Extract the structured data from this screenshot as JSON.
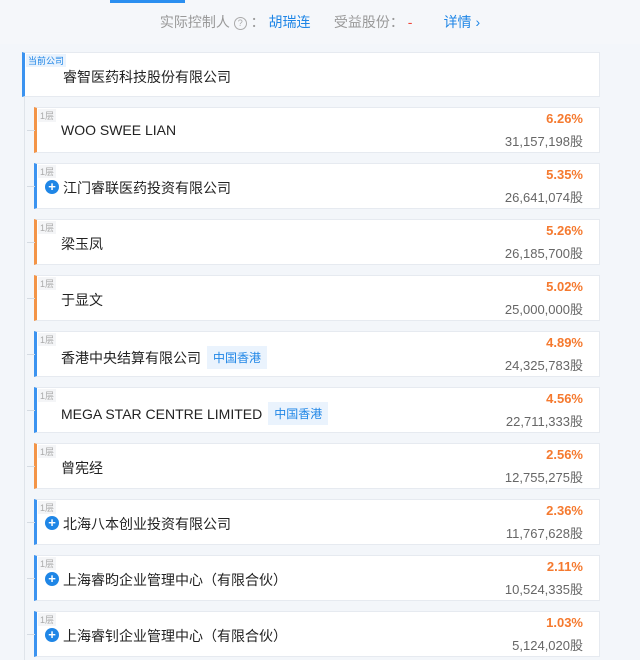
{
  "header": {
    "controller_label": "实际控制人",
    "controller_help_icon": "question-circle-icon",
    "controller_sep": "：",
    "controller_name": "胡瑞连",
    "benefit_label": "受益股份：",
    "benefit_value": "-",
    "details_link": "详情 ›"
  },
  "current": {
    "label": "当前公司",
    "name": "睿智医药科技股份有限公司"
  },
  "colors": {
    "accent": "#1f86e6",
    "percent": "#f5792e",
    "person_border": "#f39447",
    "company_border": "#3b93f0"
  },
  "shareholders": [
    {
      "level": "1层",
      "name": "WOO SWEE LIAN",
      "type": "person",
      "percent": "6.26%",
      "shares": "31,157,198股"
    },
    {
      "level": "1层",
      "name": "江门睿联医药投资有限公司",
      "type": "company",
      "expandable": true,
      "percent": "5.35%",
      "shares": "26,641,074股"
    },
    {
      "level": "1层",
      "name": "梁玉凤",
      "type": "person",
      "percent": "5.26%",
      "shares": "26,185,700股"
    },
    {
      "level": "1层",
      "name": "于显文",
      "type": "person",
      "percent": "5.02%",
      "shares": "25,000,000股"
    },
    {
      "level": "1层",
      "name": "香港中央结算有限公司",
      "type": "company",
      "tag": "中国香港",
      "percent": "4.89%",
      "shares": "24,325,783股"
    },
    {
      "level": "1层",
      "name": "MEGA STAR CENTRE LIMITED",
      "type": "company",
      "tag": "中国香港",
      "percent": "4.56%",
      "shares": "22,711,333股"
    },
    {
      "level": "1层",
      "name": "曾宪经",
      "type": "person",
      "percent": "2.56%",
      "shares": "12,755,275股"
    },
    {
      "level": "1层",
      "name": "北海八本创业投资有限公司",
      "type": "company",
      "expandable": true,
      "percent": "2.36%",
      "shares": "11,767,628股"
    },
    {
      "level": "1层",
      "name": "上海睿昀企业管理中心（有限合伙）",
      "type": "company",
      "expandable": true,
      "percent": "2.11%",
      "shares": "10,524,335股"
    },
    {
      "level": "1层",
      "name": "上海睿钊企业管理中心（有限合伙）",
      "type": "company",
      "expandable": true,
      "percent": "1.03%",
      "shares": "5,124,020股"
    }
  ]
}
